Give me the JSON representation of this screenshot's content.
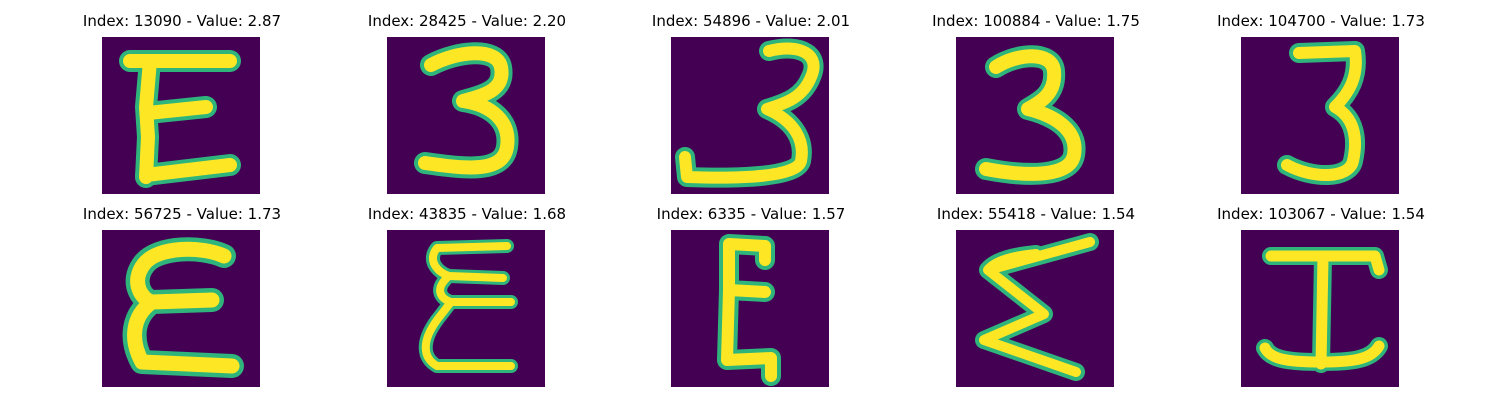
{
  "colors": {
    "background": "#440154",
    "stroke_main": "#fde725",
    "stroke_edge": "#2fb47c"
  },
  "panels": [
    {
      "title": "Index: 13090 - Value: 2.87",
      "glyph": "E"
    },
    {
      "title": "Index: 28425 - Value: 2.20",
      "glyph": "3"
    },
    {
      "title": "Index: 54896 - Value: 2.01",
      "glyph": "3"
    },
    {
      "title": "Index: 100884 - Value: 1.75",
      "glyph": "3"
    },
    {
      "title": "Index: 104700 - Value: 1.73",
      "glyph": "3"
    },
    {
      "title": "Index: 56725 - Value: 1.73",
      "glyph": "E"
    },
    {
      "title": "Index: 43835 - Value: 1.68",
      "glyph": "E"
    },
    {
      "title": "Index: 6335 - Value: 1.57",
      "glyph": "E"
    },
    {
      "title": "Index: 55418 - Value: 1.54",
      "glyph": "Σ"
    },
    {
      "title": "Index: 103067 - Value: 1.54",
      "glyph": "I"
    }
  ]
}
